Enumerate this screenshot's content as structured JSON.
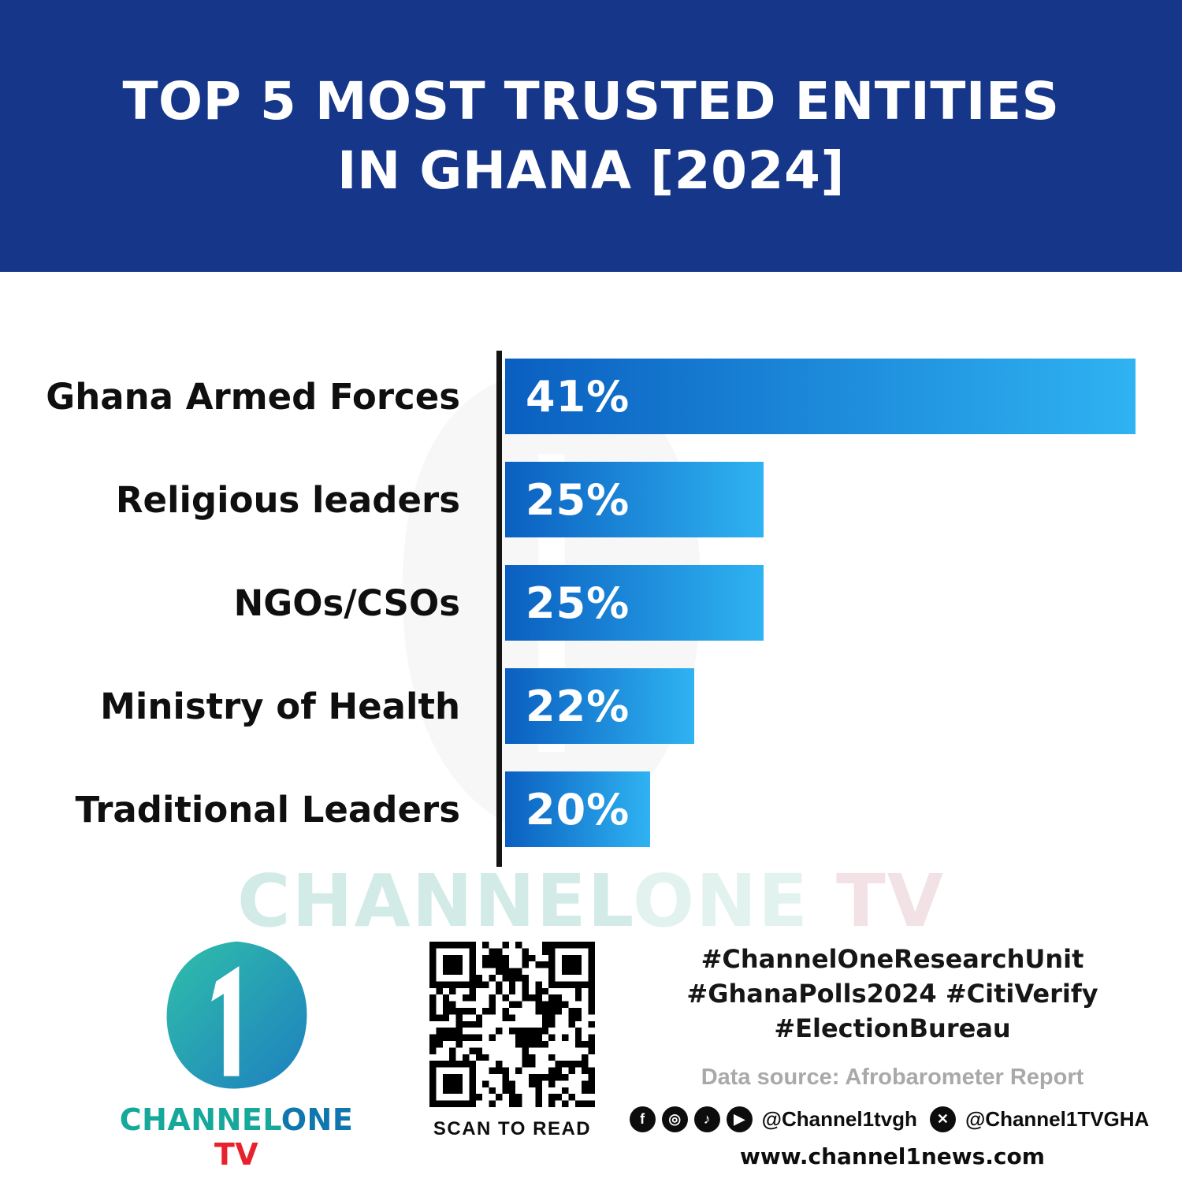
{
  "banner": {
    "title": "TOP 5 MOST TRUSTED ENTITIES\nIN GHANA [2024]",
    "background_color": "#16368a"
  },
  "chart_data": {
    "type": "bar",
    "orientation": "horizontal",
    "title": "TOP 5 MOST TRUSTED ENTITIES IN GHANA [2024]",
    "categories": [
      "Ghana Armed Forces",
      "Religious leaders",
      "NGOs/CSOs",
      "Ministry of Health",
      "Traditional Leaders"
    ],
    "values": [
      41,
      25,
      25,
      22,
      20
    ],
    "value_labels": [
      "41%",
      "25%",
      "25%",
      "22%",
      "20%"
    ],
    "unit": "percent",
    "bar_fractions": [
      1.0,
      0.41,
      0.41,
      0.3,
      0.23
    ],
    "bar_gradient": [
      "#0a5fc0",
      "#2fb3f2"
    ],
    "axis_color": "#141414",
    "grid": false,
    "legend": false,
    "value_label_position": "inside-left"
  },
  "watermark": {
    "part1": "CHANNEL",
    "part2": "ONE",
    "part3": " TV"
  },
  "footer": {
    "logo": {
      "one_glyph": "1",
      "brand_channel": "CHANNEL",
      "brand_one": "ONE",
      "brand_tv": " TV",
      "teal": "#2fbfa9",
      "blue": "#1e7fc0",
      "red": "#e8222d"
    },
    "qr_caption": "SCAN TO READ",
    "hashtags": [
      "#ChannelOneResearchUnit",
      "#GhanaPolls2024 #CitiVerify",
      "#ElectionBureau"
    ],
    "data_source": "Data source: Afrobarometer Report",
    "social": {
      "icons": [
        {
          "name": "facebook-icon",
          "glyph": "f"
        },
        {
          "name": "instagram-icon",
          "glyph": "◎"
        },
        {
          "name": "tiktok-icon",
          "glyph": "♪"
        },
        {
          "name": "youtube-icon",
          "glyph": "▶"
        },
        {
          "name": "x-icon",
          "glyph": "✕"
        }
      ],
      "handle1": "@Channel1tvgh",
      "handle2": "@Channel1TVGHA"
    },
    "website": "www.channel1news.com"
  }
}
